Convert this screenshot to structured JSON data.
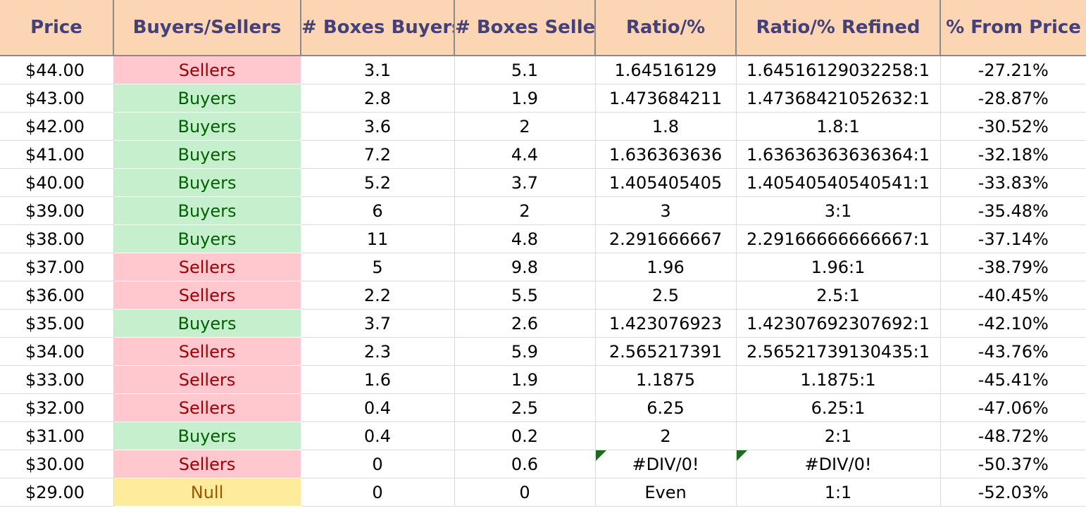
{
  "headers": [
    "Price",
    "Buyers/Sellers",
    "# Boxes Buyers",
    "# Boxes Sellers",
    "Ratio/%",
    "Ratio/% Refined",
    "% From Price"
  ],
  "rows": [
    {
      "price": "$44.00",
      "bs": "Sellers",
      "buyers": "3.1",
      "sellers": "5.1",
      "ratio": "1.64516129",
      "refined": "1.64516129032258:1",
      "pct": "-27.21%"
    },
    {
      "price": "$43.00",
      "bs": "Buyers",
      "buyers": "2.8",
      "sellers": "1.9",
      "ratio": "1.473684211",
      "refined": "1.47368421052632:1",
      "pct": "-28.87%"
    },
    {
      "price": "$42.00",
      "bs": "Buyers",
      "buyers": "3.6",
      "sellers": "2",
      "ratio": "1.8",
      "refined": "1.8:1",
      "pct": "-30.52%"
    },
    {
      "price": "$41.00",
      "bs": "Buyers",
      "buyers": "7.2",
      "sellers": "4.4",
      "ratio": "1.636363636",
      "refined": "1.63636363636364:1",
      "pct": "-32.18%"
    },
    {
      "price": "$40.00",
      "bs": "Buyers",
      "buyers": "5.2",
      "sellers": "3.7",
      "ratio": "1.405405405",
      "refined": "1.40540540540541:1",
      "pct": "-33.83%"
    },
    {
      "price": "$39.00",
      "bs": "Buyers",
      "buyers": "6",
      "sellers": "2",
      "ratio": "3",
      "refined": "3:1",
      "pct": "-35.48%"
    },
    {
      "price": "$38.00",
      "bs": "Buyers",
      "buyers": "11",
      "sellers": "4.8",
      "ratio": "2.291666667",
      "refined": "2.29166666666667:1",
      "pct": "-37.14%"
    },
    {
      "price": "$37.00",
      "bs": "Sellers",
      "buyers": "5",
      "sellers": "9.8",
      "ratio": "1.96",
      "refined": "1.96:1",
      "pct": "-38.79%"
    },
    {
      "price": "$36.00",
      "bs": "Sellers",
      "buyers": "2.2",
      "sellers": "5.5",
      "ratio": "2.5",
      "refined": "2.5:1",
      "pct": "-40.45%"
    },
    {
      "price": "$35.00",
      "bs": "Buyers",
      "buyers": "3.7",
      "sellers": "2.6",
      "ratio": "1.423076923",
      "refined": "1.42307692307692:1",
      "pct": "-42.10%"
    },
    {
      "price": "$34.00",
      "bs": "Sellers",
      "buyers": "2.3",
      "sellers": "5.9",
      "ratio": "2.565217391",
      "refined": "2.56521739130435:1",
      "pct": "-43.76%"
    },
    {
      "price": "$33.00",
      "bs": "Sellers",
      "buyers": "1.6",
      "sellers": "1.9",
      "ratio": "1.1875",
      "refined": "1.1875:1",
      "pct": "-45.41%"
    },
    {
      "price": "$32.00",
      "bs": "Sellers",
      "buyers": "0.4",
      "sellers": "2.5",
      "ratio": "6.25",
      "refined": "6.25:1",
      "pct": "-47.06%"
    },
    {
      "price": "$31.00",
      "bs": "Buyers",
      "buyers": "0.4",
      "sellers": "0.2",
      "ratio": "2",
      "refined": "2:1",
      "pct": "-48.72%"
    },
    {
      "price": "$30.00",
      "bs": "Sellers",
      "buyers": "0",
      "sellers": "0.6",
      "ratio": "#DIV/0!",
      "refined": "#DIV/0!",
      "pct": "-50.37%",
      "error_flag": true
    },
    {
      "price": "$29.00",
      "bs": "Null",
      "buyers": "0",
      "sellers": "0",
      "ratio": "Even",
      "refined": "1:1",
      "pct": "-52.03%"
    }
  ],
  "colors": {
    "header_bg": "#fcd5b4",
    "header_text": "#44407a",
    "sellers_bg": "#ffc7ce",
    "sellers_text": "#9c0006",
    "buyers_bg": "#c6efce",
    "buyers_text": "#006100",
    "null_bg": "#ffeb9c",
    "null_text": "#9c5700",
    "error_indicator": "#1e6b1e"
  }
}
